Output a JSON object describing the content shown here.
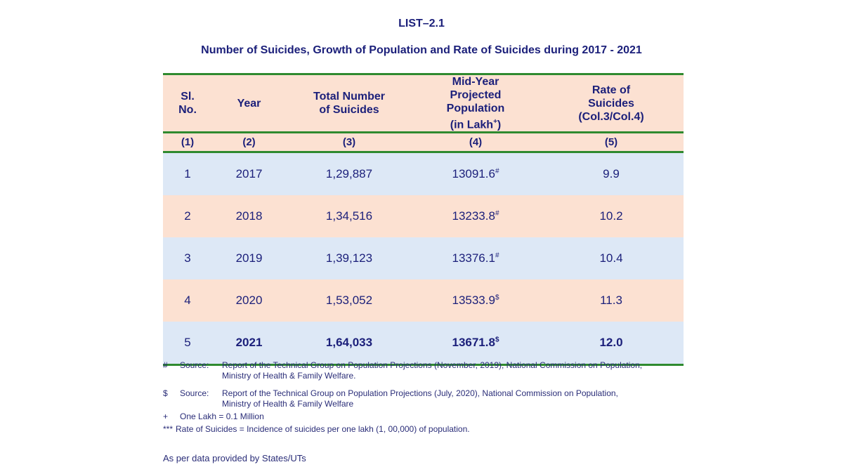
{
  "list_label": "LIST–2.1",
  "title": "Number of Suicides, Growth of Population and Rate of Suicides during 2017 - 2021",
  "table": {
    "headers": [
      "Sl. No.",
      "Year",
      "Total Number of Suicides",
      "Mid-Year Projected Population",
      "Rate of Suicides (Col.3/Col.4)"
    ],
    "header_pop_sub": "(in Lakh",
    "header_pop_sup": "+",
    "header_pop_close": ")",
    "col_numbers": [
      "(1)",
      "(2)",
      "(3)",
      "(4)",
      "(5)"
    ],
    "rows": [
      {
        "sl": "1",
        "year": "2017",
        "total": "1,29,887",
        "pop": "13091.6",
        "mark": "#",
        "rate": "9.9"
      },
      {
        "sl": "2",
        "year": "2018",
        "total": "1,34,516",
        "pop": "13233.8",
        "mark": "#",
        "rate": "10.2"
      },
      {
        "sl": "3",
        "year": "2019",
        "total": "1,39,123",
        "pop": "13376.1",
        "mark": "#",
        "rate": "10.4"
      },
      {
        "sl": "4",
        "year": "2020",
        "total": "1,53,052",
        "pop": "13533.9",
        "mark": "$",
        "rate": "11.3"
      },
      {
        "sl": "5",
        "year": "2021",
        "total": "1,64,033",
        "pop": "13671.8",
        "mark": "$",
        "rate": "12.0"
      }
    ]
  },
  "notes": [
    {
      "sym": "#",
      "label": "Source:",
      "text": "Report of the Technical Group on Population Projections (November, 2019), National Commission on Population, Ministry of Health & Family Welfare."
    },
    {
      "sym": "$",
      "label": "Source:",
      "text": "Report of the Technical Group on Population Projections (July, 2020), National Commission on Population, Ministry of Health & Family Welfare"
    },
    {
      "sym": "+",
      "text": "One Lakh = 0.1 Million"
    },
    {
      "sym": "***",
      "text": "Rate of Suicides = Incidence of suicides per one lakh (1, 00,000) of population."
    }
  ],
  "as_per": "As per data provided by States/UTs"
}
